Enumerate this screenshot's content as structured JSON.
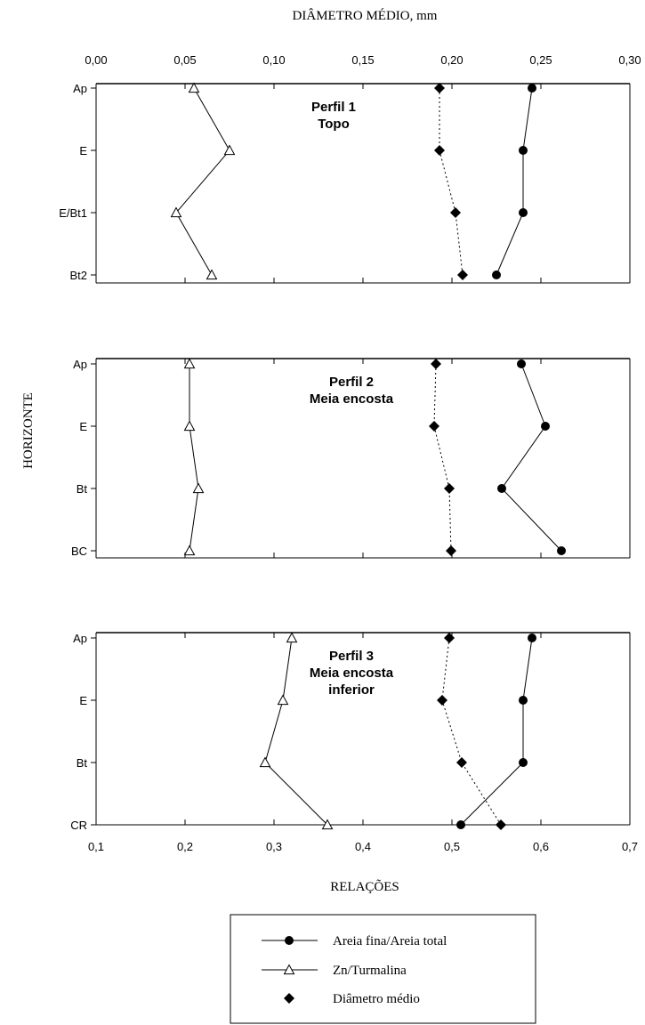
{
  "top_axis_title": "DIÂMETRO MÉDIO, mm",
  "bottom_axis_title": "RELAÇÕES",
  "y_axis_title": "HORIZONTE",
  "top_axis": {
    "min": 0,
    "max": 0.3,
    "ticks": [
      "0,00",
      "0,05",
      "0,10",
      "0,15",
      "0,20",
      "0,25",
      "0,30"
    ]
  },
  "bottom_axis": {
    "min": 0.1,
    "max": 0.7,
    "ticks": [
      "0,1",
      "0,2",
      "0,3",
      "0,4",
      "0,5",
      "0,6",
      "0,7"
    ]
  },
  "legend": {
    "items": [
      {
        "label": "Areia fina/Areia total",
        "marker": "filled-circle",
        "line": "solid"
      },
      {
        "label": "Zn/Turmalina",
        "marker": "open-triangle",
        "line": "solid"
      },
      {
        "label": "Diâmetro médio",
        "marker": "filled-diamond",
        "line": "dotted"
      }
    ]
  },
  "colors": {
    "ink": "#000000",
    "background": "#ffffff"
  },
  "chart_data": [
    {
      "type": "line",
      "title": [
        "Perfil 1",
        "Topo"
      ],
      "categories": [
        "Ap",
        "E",
        "E/Bt1",
        "Bt2"
      ],
      "category_labels": [
        "Ap",
        "E",
        "E/Bt1",
        "Bt2"
      ],
      "series": [
        {
          "name": "Areia fina/Areia total",
          "axis": "relacoes",
          "values": [
            0.59,
            0.58,
            0.58,
            0.55
          ]
        },
        {
          "name": "Zn/Turmalina",
          "axis": "relacoes",
          "values": [
            0.21,
            0.25,
            0.19,
            0.23
          ]
        },
        {
          "name": "Diâmetro médio",
          "axis": "diametro_mm",
          "values": [
            0.193,
            0.193,
            0.202,
            0.206
          ]
        }
      ]
    },
    {
      "type": "line",
      "title": [
        "Perfil 2",
        "Meia encosta"
      ],
      "categories": [
        "Ap",
        "E",
        "Bt",
        "BC"
      ],
      "category_labels": [
        "Ap",
        "E",
        "Bt",
        "BC"
      ],
      "series": [
        {
          "name": "Areia fina/Areia total",
          "axis": "relacoes",
          "values": [
            0.578,
            0.605,
            0.556,
            0.623
          ]
        },
        {
          "name": "Zn/Turmalina",
          "axis": "relacoes",
          "values": [
            0.205,
            0.205,
            0.215,
            0.205
          ]
        },
        {
          "name": "Diâmetro médio",
          "axis": "relacoes",
          "values": [
            0.482,
            0.48,
            0.497,
            0.499
          ]
        }
      ]
    },
    {
      "type": "line",
      "title": [
        "Perfil 3",
        "Meia encosta",
        "inferior"
      ],
      "categories": [
        "Ap",
        "E",
        "Bt",
        "CR"
      ],
      "category_labels": [
        "Ap",
        "E",
        "Bt",
        "CR"
      ],
      "series": [
        {
          "name": "Areia fina/Areia total",
          "axis": "relacoes",
          "values": [
            0.59,
            0.58,
            0.58,
            0.51
          ]
        },
        {
          "name": "Zn/Turmalina",
          "axis": "relacoes",
          "values": [
            0.32,
            0.31,
            0.29,
            0.36
          ]
        },
        {
          "name": "Diâmetro médio",
          "axis": "relacoes",
          "values": [
            0.497,
            0.489,
            0.511,
            0.555
          ]
        }
      ]
    }
  ]
}
